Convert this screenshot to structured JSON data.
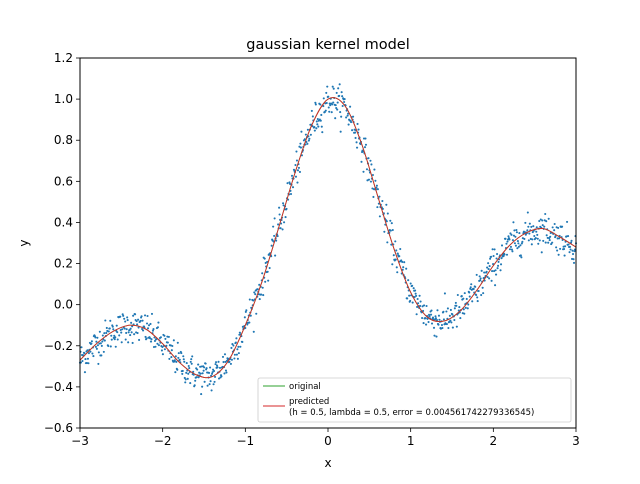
{
  "chart_data": {
    "type": "scatter",
    "title": "gaussian kernel model",
    "xlabel": "x",
    "ylabel": "y",
    "xlim": [
      -3,
      3
    ],
    "ylim": [
      -0.6,
      1.2
    ],
    "x_ticks": [
      -3,
      -2,
      -1,
      0,
      1,
      2,
      3
    ],
    "x_tick_labels": [
      "−3",
      "−2",
      "−1",
      "0",
      "1",
      "2",
      "3"
    ],
    "y_ticks": [
      -0.6,
      -0.4,
      -0.2,
      0.0,
      0.2,
      0.4,
      0.6,
      0.8,
      1.0,
      1.2
    ],
    "y_tick_labels": [
      "−0.6",
      "−0.4",
      "−0.2",
      "0.0",
      "0.2",
      "0.4",
      "0.6",
      "0.8",
      "1.0",
      "1.2"
    ],
    "grid": false,
    "legend_position": "lower-right",
    "series": [
      {
        "name": "original",
        "kind": "line",
        "color": "#2ca02c",
        "x": [
          -3.0,
          -2.8,
          -2.6,
          -2.4,
          -2.2,
          -2.0,
          -1.8,
          -1.6,
          -1.4,
          -1.2,
          -1.0,
          -0.8,
          -0.6,
          -0.4,
          -0.2,
          0.0,
          0.2,
          0.4,
          0.6,
          0.8,
          1.0,
          1.2,
          1.4,
          1.6,
          1.8,
          2.0,
          2.2,
          2.4,
          2.6,
          2.8,
          3.0
        ],
        "y": [
          -0.27,
          -0.19,
          -0.13,
          -0.1,
          -0.12,
          -0.19,
          -0.28,
          -0.34,
          -0.35,
          -0.27,
          -0.1,
          0.11,
          0.37,
          0.64,
          0.87,
          1.0,
          0.97,
          0.79,
          0.53,
          0.27,
          0.06,
          -0.06,
          -0.08,
          -0.03,
          0.07,
          0.19,
          0.29,
          0.35,
          0.37,
          0.33,
          0.28
        ]
      },
      {
        "name": "predicted\n(h = 0.5, lambda = 0.5, error = 0.004561742279336545)",
        "name_lines": [
          "predicted",
          "(h = 0.5, lambda = 0.5, error = 0.004561742279336545)"
        ],
        "kind": "line",
        "color": "#d62728",
        "x": [
          -3.0,
          -2.8,
          -2.6,
          -2.4,
          -2.2,
          -2.0,
          -1.8,
          -1.6,
          -1.4,
          -1.2,
          -1.0,
          -0.8,
          -0.6,
          -0.4,
          -0.2,
          0.0,
          0.2,
          0.4,
          0.6,
          0.8,
          1.0,
          1.2,
          1.4,
          1.6,
          1.8,
          2.0,
          2.2,
          2.4,
          2.6,
          2.8,
          3.0
        ],
        "y": [
          -0.27,
          -0.19,
          -0.13,
          -0.1,
          -0.12,
          -0.19,
          -0.28,
          -0.34,
          -0.35,
          -0.27,
          -0.1,
          0.11,
          0.37,
          0.64,
          0.87,
          1.0,
          0.97,
          0.79,
          0.53,
          0.27,
          0.06,
          -0.06,
          -0.08,
          -0.03,
          0.07,
          0.19,
          0.29,
          0.35,
          0.37,
          0.33,
          0.28
        ]
      },
      {
        "kind": "scatter",
        "color": "#1f77b4",
        "count": 1000,
        "noise_std": 0.04
      }
    ]
  }
}
